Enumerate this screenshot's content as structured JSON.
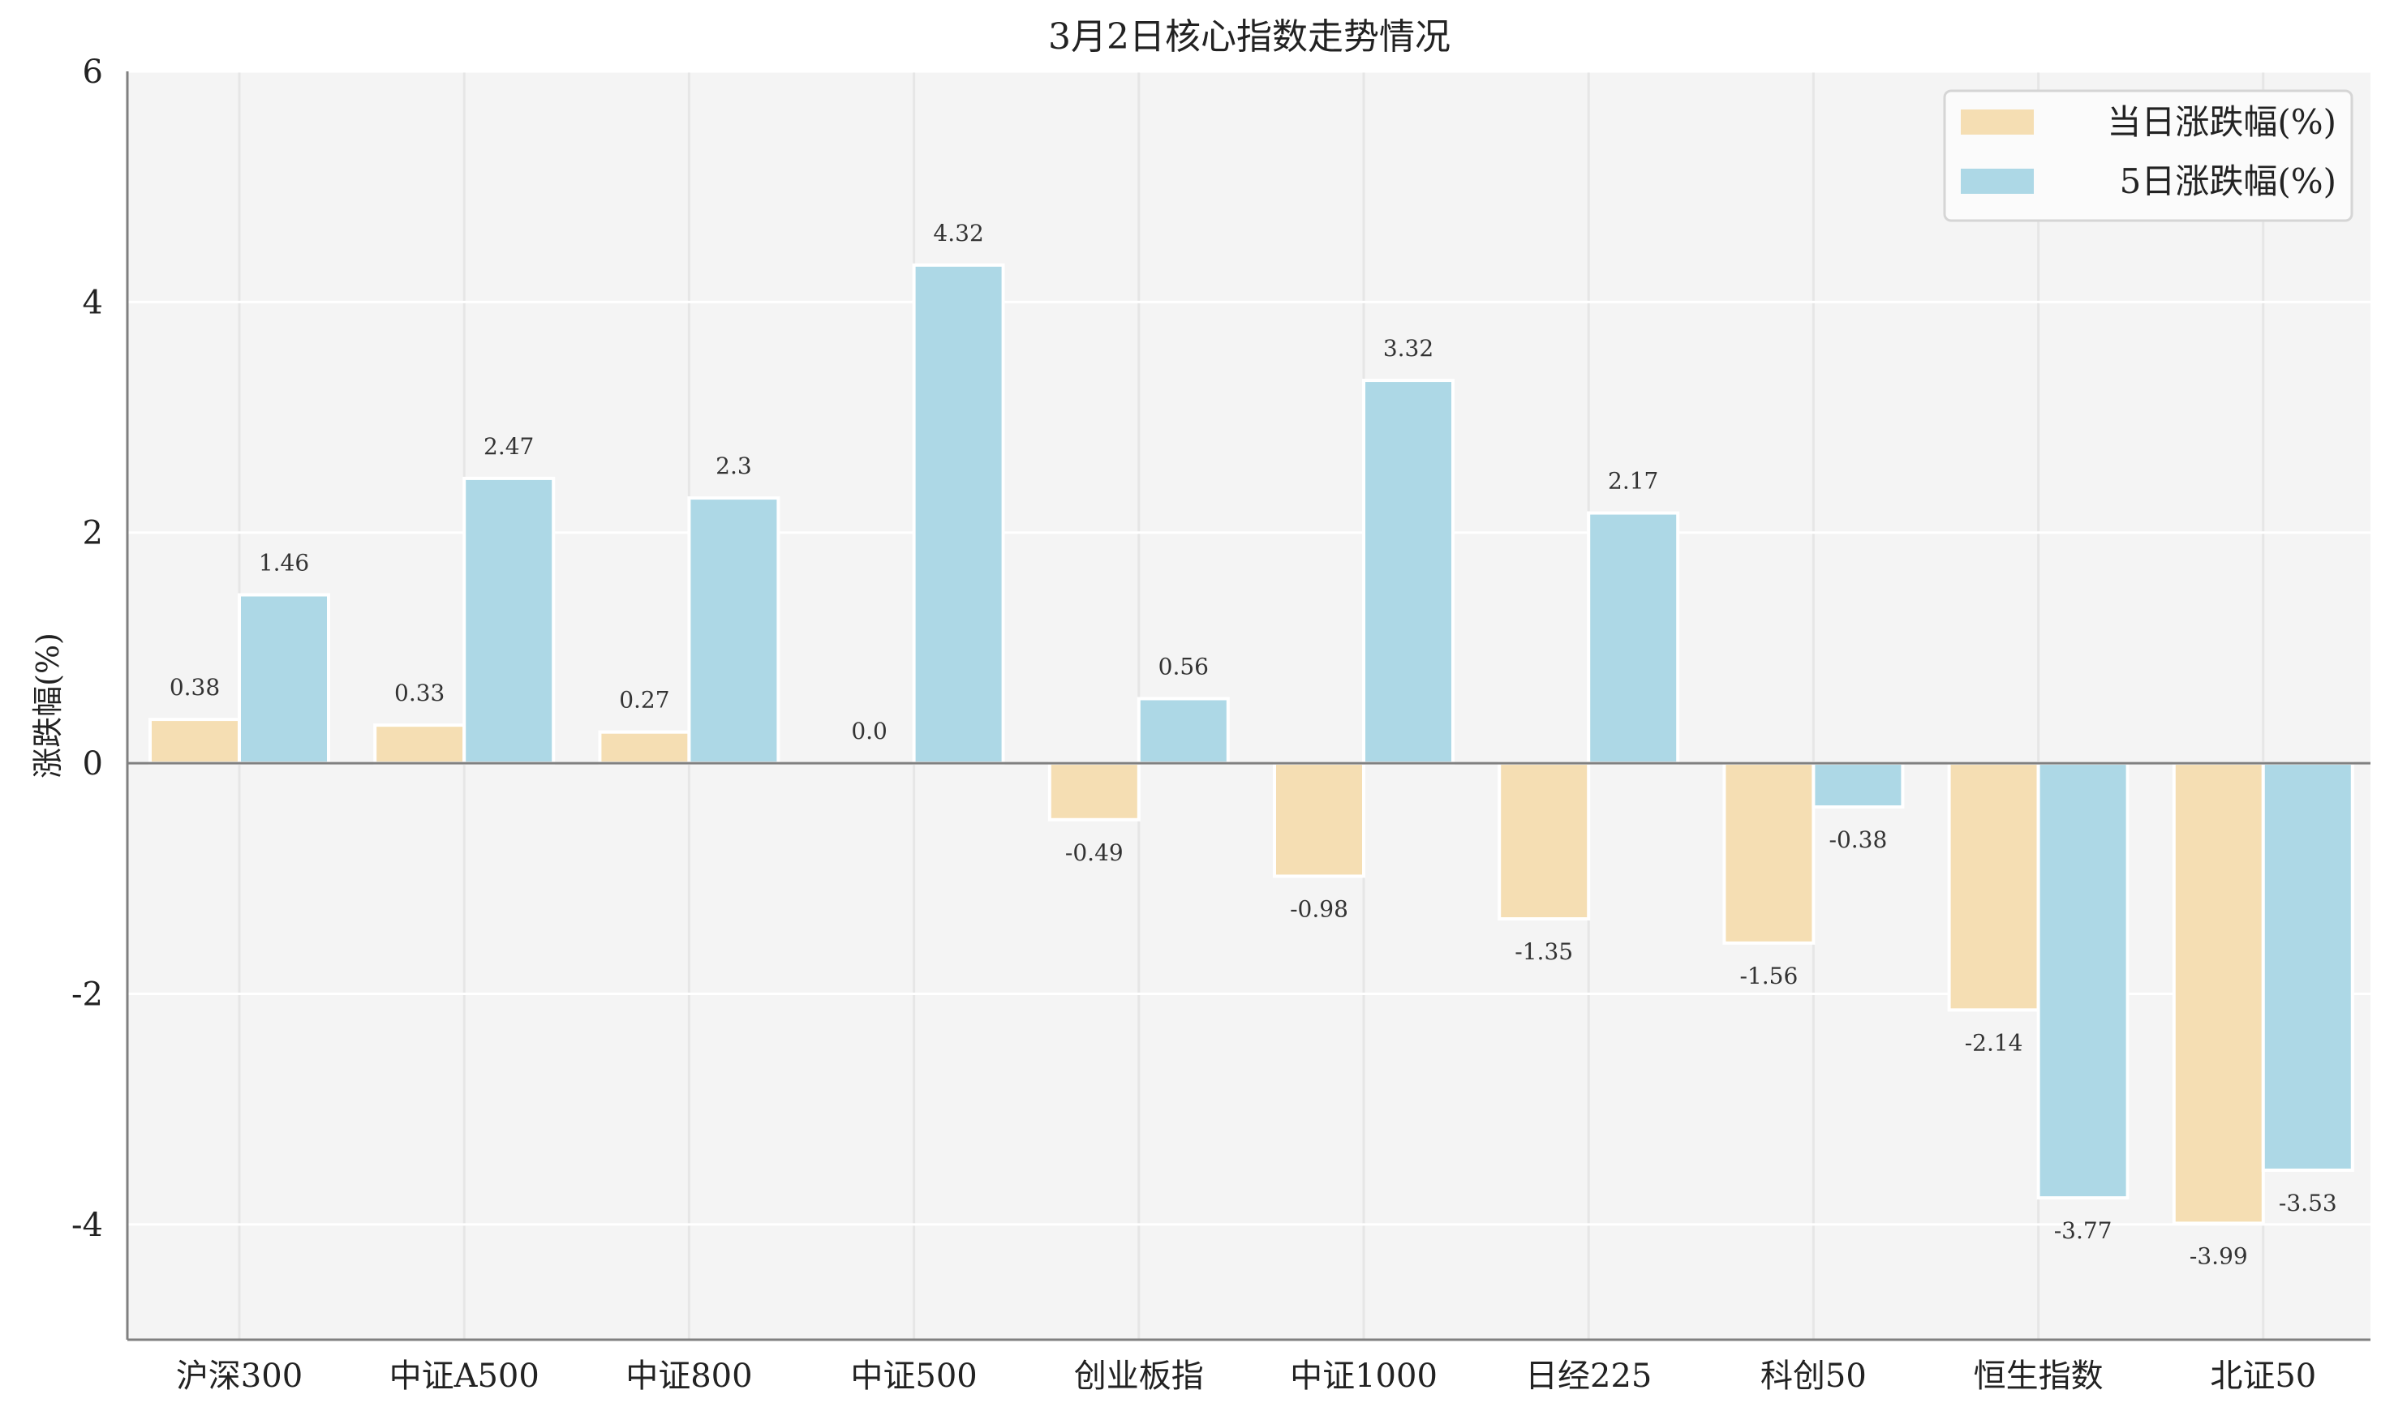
{
  "chart_data": {
    "type": "bar",
    "title": "3月2日核心指数走势情况",
    "xlabel": "",
    "ylabel": "涨跌幅(%)",
    "ylim": [
      -5,
      6
    ],
    "yticks": [
      6,
      4,
      2,
      0,
      -2,
      -4
    ],
    "grid": true,
    "legend_position": "upper right",
    "categories": [
      "沪深300",
      "中证A500",
      "中证800",
      "中证500",
      "创业板指",
      "中证1000",
      "日经225",
      "科创50",
      "恒生指数",
      "北证50"
    ],
    "series": [
      {
        "name": "当日涨跌幅(%)",
        "color": "#F5DEB3",
        "values": [
          0.38,
          0.33,
          0.27,
          0.0,
          -0.49,
          -0.98,
          -1.35,
          -1.56,
          -2.14,
          -3.99
        ],
        "labels": [
          "0.38",
          "0.33",
          "0.27",
          "0.0",
          "-0.49",
          "-0.98",
          "-1.35",
          "-1.56",
          "-2.14",
          "-3.99"
        ]
      },
      {
        "name": "5日涨跌幅(%)",
        "color": "#ADD8E6",
        "values": [
          1.46,
          2.47,
          2.3,
          4.32,
          0.56,
          3.32,
          2.17,
          -0.38,
          -3.77,
          -3.53
        ],
        "labels": [
          "1.46",
          "2.47",
          "2.3",
          "4.32",
          "0.56",
          "3.32",
          "2.17",
          "-0.38",
          "-3.77",
          "-3.53"
        ]
      }
    ]
  },
  "colors": {
    "plot_bg": "#F4F4F4",
    "grid": "#FFFFFF",
    "axis": "#808080",
    "bar_edge": "#FFFFFF"
  }
}
